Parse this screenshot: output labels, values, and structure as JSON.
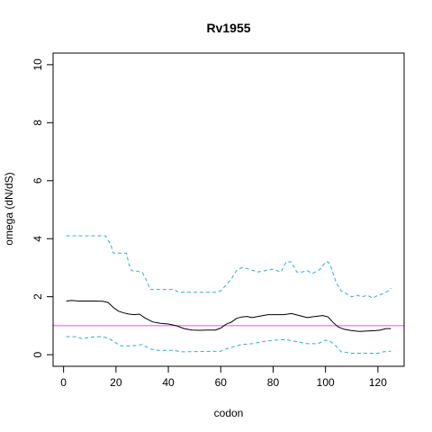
{
  "chart_data": {
    "type": "line",
    "title": "Rv1955",
    "xlabel": "codon",
    "ylabel": "omega (dN/dS)",
    "xlim": [
      -4,
      130
    ],
    "ylim": [
      -0.4,
      10.4
    ],
    "xticks": [
      0,
      20,
      40,
      60,
      80,
      100,
      120
    ],
    "yticks": [
      0,
      2,
      4,
      6,
      8,
      10
    ],
    "reference_line": {
      "y": 1,
      "color": "#cc66cc"
    },
    "series": [
      {
        "role": "estimate",
        "color": "#000000",
        "dash": "solid",
        "x": [
          1,
          3,
          6,
          9,
          12,
          15,
          17,
          19,
          21,
          23,
          25,
          27,
          29,
          31,
          34,
          37,
          40,
          43,
          46,
          49,
          52,
          55,
          58,
          60,
          62,
          64,
          66,
          68,
          70,
          72,
          75,
          78,
          81,
          84,
          87,
          90,
          93,
          96,
          99,
          101,
          103,
          105,
          107,
          110,
          113,
          116,
          119,
          121,
          123,
          125
        ],
        "y": [
          1.85,
          1.87,
          1.85,
          1.85,
          1.85,
          1.84,
          1.8,
          1.63,
          1.5,
          1.44,
          1.4,
          1.38,
          1.4,
          1.27,
          1.13,
          1.08,
          1.06,
          1.0,
          0.9,
          0.85,
          0.84,
          0.85,
          0.85,
          0.92,
          1.05,
          1.12,
          1.25,
          1.3,
          1.32,
          1.28,
          1.33,
          1.38,
          1.38,
          1.38,
          1.42,
          1.35,
          1.28,
          1.32,
          1.35,
          1.3,
          1.1,
          0.95,
          0.88,
          0.83,
          0.8,
          0.82,
          0.83,
          0.85,
          0.9,
          0.9
        ]
      },
      {
        "role": "upper",
        "color": "#33aadd",
        "dash": "dashed",
        "x": [
          1,
          16,
          18,
          19,
          24,
          25,
          26,
          30,
          32,
          33,
          38,
          42,
          44,
          58,
          60,
          64,
          66,
          68,
          71,
          74,
          77,
          80,
          83,
          85,
          87,
          89,
          91,
          93,
          95,
          98,
          100,
          101,
          102,
          104,
          106,
          108,
          110,
          112,
          114,
          116,
          118,
          120,
          122,
          124,
          125
        ],
        "y": [
          4.1,
          4.1,
          3.8,
          3.5,
          3.5,
          3.1,
          2.9,
          2.85,
          2.5,
          2.25,
          2.25,
          2.25,
          2.15,
          2.15,
          2.2,
          2.6,
          2.9,
          3.0,
          2.95,
          2.85,
          2.9,
          2.95,
          2.85,
          3.2,
          3.2,
          2.85,
          2.85,
          2.9,
          2.8,
          2.95,
          3.2,
          3.2,
          3.05,
          2.5,
          2.2,
          2.1,
          2.0,
          2.05,
          2.0,
          2.05,
          1.95,
          2.05,
          2.1,
          2.2,
          2.3
        ]
      },
      {
        "role": "lower",
        "color": "#33aadd",
        "dash": "dashed",
        "x": [
          1,
          5,
          7,
          10,
          14,
          17,
          20,
          22,
          26,
          30,
          33,
          36,
          42,
          45,
          60,
          62,
          66,
          68,
          72,
          76,
          80,
          84,
          86,
          89,
          93,
          97,
          100,
          102,
          104,
          106,
          110,
          115,
          120,
          122,
          125
        ],
        "y": [
          0.62,
          0.62,
          0.55,
          0.6,
          0.62,
          0.58,
          0.4,
          0.3,
          0.3,
          0.35,
          0.2,
          0.15,
          0.15,
          0.1,
          0.12,
          0.2,
          0.3,
          0.35,
          0.38,
          0.45,
          0.5,
          0.52,
          0.5,
          0.45,
          0.38,
          0.38,
          0.5,
          0.45,
          0.3,
          0.1,
          0.05,
          0.05,
          0.05,
          0.1,
          0.12
        ]
      }
    ],
    "grid": false
  }
}
